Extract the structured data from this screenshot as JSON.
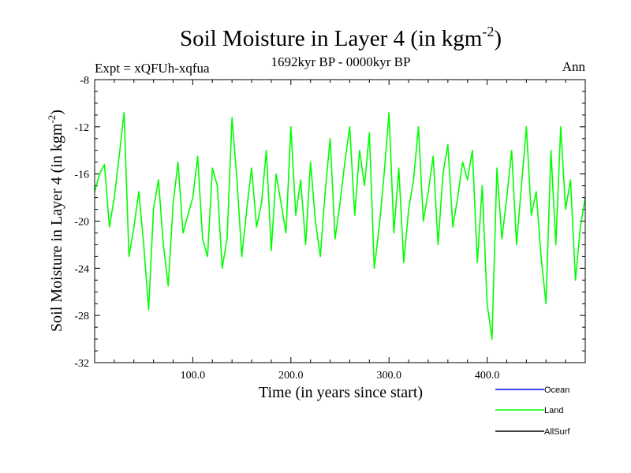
{
  "chart_data": {
    "type": "line",
    "title": {
      "prefix": "Soil Moisture in Layer 4 (in kgm",
      "superscript": "-2",
      "suffix": ")"
    },
    "subtitle": "1692kyr BP - 0000kyr BP",
    "left_annotation": "Expt = xQFUh-xqfua",
    "right_annotation": "Ann",
    "xlabel": "Time (in years since start)",
    "ylabel": {
      "prefix": "Soil Moisture in Layer 4 (in kgm",
      "superscript": "-2",
      "suffix": ")"
    },
    "xlim": [
      0,
      500
    ],
    "ylim": [
      -32,
      -8
    ],
    "x_ticks": [
      {
        "value": 100,
        "label": "100.0"
      },
      {
        "value": 200,
        "label": "200.0"
      },
      {
        "value": 300,
        "label": "300.0"
      },
      {
        "value": 400,
        "label": "400.0"
      }
    ],
    "y_ticks": [
      {
        "value": -8,
        "label": "-8"
      },
      {
        "value": -12,
        "label": "-12"
      },
      {
        "value": -16,
        "label": "-16"
      },
      {
        "value": -20,
        "label": "-20"
      },
      {
        "value": -24,
        "label": "-24"
      },
      {
        "value": -28,
        "label": "-28"
      },
      {
        "value": -32,
        "label": "-32"
      }
    ],
    "legend": [
      {
        "name": "Ocean",
        "color": "#0000ff"
      },
      {
        "name": "Land",
        "color": "#00ff00"
      },
      {
        "name": "AllSurf",
        "color": "#000000"
      }
    ],
    "series": [
      {
        "name": "Land",
        "color": "#00ff00",
        "x": [
          0,
          5,
          10,
          15,
          20,
          25,
          30,
          35,
          40,
          45,
          50,
          55,
          60,
          65,
          70,
          75,
          80,
          85,
          90,
          95,
          100,
          105,
          110,
          115,
          120,
          125,
          130,
          135,
          140,
          145,
          150,
          155,
          160,
          165,
          170,
          175,
          180,
          185,
          190,
          195,
          200,
          205,
          210,
          215,
          220,
          225,
          230,
          235,
          240,
          245,
          250,
          255,
          260,
          265,
          270,
          275,
          280,
          285,
          290,
          295,
          300,
          305,
          310,
          315,
          320,
          325,
          330,
          335,
          340,
          345,
          350,
          355,
          360,
          365,
          370,
          375,
          380,
          385,
          390,
          395,
          400,
          405,
          410,
          415,
          420,
          425,
          430,
          435,
          440,
          445,
          450,
          455,
          460,
          465,
          470,
          475,
          480,
          485,
          490,
          495,
          500
        ],
        "values": [
          -17.5,
          -16.0,
          -15.2,
          -20.5,
          -18.0,
          -14.5,
          -10.8,
          -23.0,
          -20.5,
          -17.5,
          -22.0,
          -27.5,
          -19.0,
          -16.5,
          -22.0,
          -25.5,
          -18.5,
          -15.0,
          -21.0,
          -19.5,
          -18.0,
          -14.5,
          -21.5,
          -23.0,
          -15.5,
          -17.0,
          -24.0,
          -21.5,
          -11.2,
          -16.5,
          -23.0,
          -19.0,
          -15.5,
          -20.5,
          -18.5,
          -14.0,
          -22.5,
          -16.0,
          -18.5,
          -21.0,
          -12.0,
          -19.5,
          -16.5,
          -22.0,
          -15.0,
          -20.0,
          -23.0,
          -17.5,
          -13.0,
          -21.5,
          -18.5,
          -15.0,
          -12.0,
          -19.5,
          -14.0,
          -17.0,
          -12.5,
          -24.0,
          -20.5,
          -16.0,
          -10.8,
          -21.0,
          -15.5,
          -23.5,
          -19.0,
          -16.5,
          -12.0,
          -20.0,
          -17.5,
          -14.5,
          -22.0,
          -16.0,
          -13.5,
          -20.5,
          -18.0,
          -15.0,
          -16.5,
          -14.0,
          -23.5,
          -17.0,
          -27.0,
          -30.0,
          -15.5,
          -21.5,
          -18.0,
          -14.0,
          -22.0,
          -17.0,
          -12.0,
          -19.5,
          -17.5,
          -23.0,
          -27.0,
          -14.0,
          -22.0,
          -12.0,
          -19.0,
          -16.5,
          -25.0,
          -20.5,
          -18.0
        ]
      }
    ]
  }
}
